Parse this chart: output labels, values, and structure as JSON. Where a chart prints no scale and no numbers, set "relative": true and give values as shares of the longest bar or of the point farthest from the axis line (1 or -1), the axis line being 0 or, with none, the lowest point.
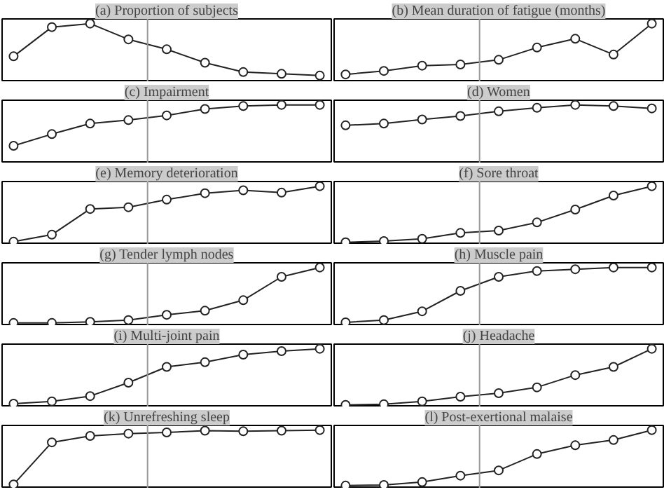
{
  "chart_data": [
    {
      "type": "line",
      "title": "(a) Proportion of subjects",
      "relative": true,
      "categories": [
        null,
        null,
        null,
        null,
        null,
        null,
        null,
        null,
        null
      ],
      "values": [
        0.44,
        0.94,
        1,
        0.73,
        0.56,
        0.33,
        0.17,
        0.14,
        0.11
      ],
      "color": "#222222",
      "marker": "circle",
      "tick_labels": false
    },
    {
      "type": "line",
      "title": "(b) Mean duration of fatigue (months)",
      "relative": true,
      "categories": [
        null,
        null,
        null,
        null,
        null,
        null,
        null,
        null,
        null
      ],
      "values": [
        0.13,
        0.19,
        0.28,
        0.3,
        0.38,
        0.59,
        0.74,
        0.47,
        1
      ],
      "color": "#222222",
      "marker": "circle",
      "tick_labels": false
    },
    {
      "type": "line",
      "title": "(c) Impairment",
      "relative": true,
      "categories": [
        null,
        null,
        null,
        null,
        null,
        null,
        null,
        null,
        null
      ],
      "values": [
        0.3,
        0.5,
        0.68,
        0.74,
        0.82,
        0.93,
        0.98,
        1,
        1
      ],
      "color": "#222222",
      "marker": "circle",
      "tick_labels": false
    },
    {
      "type": "line",
      "title": "(d) Women",
      "relative": true,
      "categories": [
        null,
        null,
        null,
        null,
        null,
        null,
        null,
        null,
        null
      ],
      "values": [
        0.65,
        0.68,
        0.75,
        0.81,
        0.89,
        0.95,
        1,
        0.98,
        0.94
      ],
      "color": "#222222",
      "marker": "circle",
      "tick_labels": false
    },
    {
      "type": "line",
      "title": "(e) Memory deterioration",
      "relative": true,
      "categories": [
        null,
        null,
        null,
        null,
        null,
        null,
        null,
        null,
        null
      ],
      "values": [
        0.05,
        0.17,
        0.61,
        0.64,
        0.77,
        0.88,
        0.93,
        0.89,
        1
      ],
      "color": "#222222",
      "marker": "circle",
      "tick_labels": false
    },
    {
      "type": "line",
      "title": "(f) Sore throat",
      "relative": true,
      "categories": [
        null,
        null,
        null,
        null,
        null,
        null,
        null,
        null,
        null
      ],
      "values": [
        0.04,
        0.06,
        0.1,
        0.2,
        0.24,
        0.38,
        0.6,
        0.84,
        1
      ],
      "color": "#222222",
      "marker": "circle",
      "tick_labels": false
    },
    {
      "type": "line",
      "title": "(g) Tender lymph nodes",
      "relative": true,
      "categories": [
        null,
        null,
        null,
        null,
        null,
        null,
        null,
        null,
        null
      ],
      "values": [
        0.05,
        0.05,
        0.07,
        0.1,
        0.19,
        0.26,
        0.44,
        0.84,
        1
      ],
      "color": "#222222",
      "marker": "circle",
      "tick_labels": false
    },
    {
      "type": "line",
      "title": "(h) Muscle pain",
      "relative": true,
      "categories": [
        null,
        null,
        null,
        null,
        null,
        null,
        null,
        null,
        null
      ],
      "values": [
        0.06,
        0.1,
        0.25,
        0.6,
        0.84,
        0.94,
        0.97,
        1,
        1
      ],
      "color": "#222222",
      "marker": "circle",
      "tick_labels": false
    },
    {
      "type": "line",
      "title": "(i) Multi-joint pain",
      "relative": true,
      "categories": [
        null,
        null,
        null,
        null,
        null,
        null,
        null,
        null,
        null
      ],
      "values": [
        0.06,
        0.1,
        0.19,
        0.42,
        0.69,
        0.77,
        0.9,
        0.96,
        1
      ],
      "color": "#222222",
      "marker": "circle",
      "tick_labels": false
    },
    {
      "type": "line",
      "title": "(j) Headache",
      "relative": true,
      "categories": [
        null,
        null,
        null,
        null,
        null,
        null,
        null,
        null,
        null
      ],
      "values": [
        0.04,
        0.05,
        0.1,
        0.18,
        0.24,
        0.34,
        0.55,
        0.69,
        1
      ],
      "color": "#222222",
      "marker": "circle",
      "tick_labels": false
    },
    {
      "type": "line",
      "title": "(k) Unrefreshing sleep",
      "relative": true,
      "categories": [
        null,
        null,
        null,
        null,
        null,
        null,
        null,
        null,
        null
      ],
      "values": [
        0.07,
        0.79,
        0.9,
        0.94,
        0.96,
        0.99,
        0.98,
        0.99,
        1
      ],
      "color": "#222222",
      "marker": "circle",
      "tick_labels": false
    },
    {
      "type": "line",
      "title": "(l) Post-exertional malaise",
      "relative": true,
      "categories": [
        null,
        null,
        null,
        null,
        null,
        null,
        null,
        null,
        null
      ],
      "values": [
        0.05,
        0.06,
        0.11,
        0.22,
        0.31,
        0.59,
        0.74,
        0.83,
        1
      ],
      "color": "#222222",
      "marker": "circle",
      "tick_labels": false
    }
  ]
}
